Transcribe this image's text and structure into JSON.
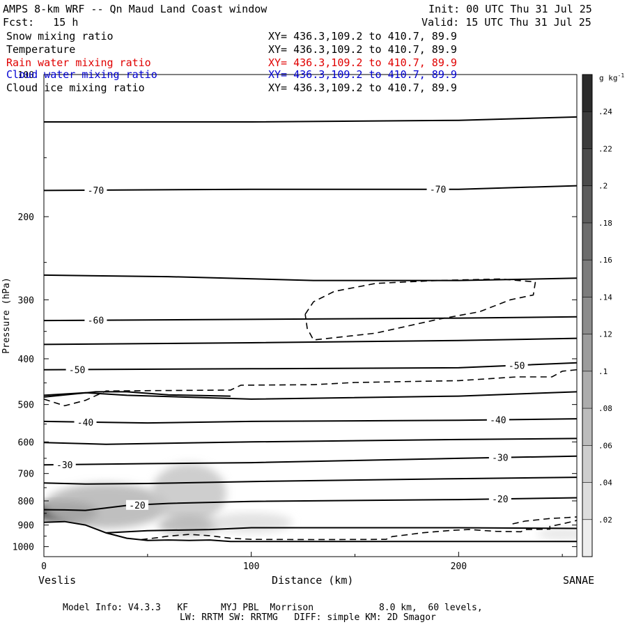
{
  "header": {
    "title": "AMPS 8-km WRF -- Qn Maud Land Coast window",
    "init": "Init: 00 UTC Thu 31 Jul 25",
    "fcst": "Fcst:   15 h",
    "valid": "Valid: 15 UTC Thu 31 Jul 25"
  },
  "legend": [
    {
      "name": "Snow mixing ratio",
      "xy": "XY= 436.3,109.2 to 410.7, 89.9",
      "color": "#000000"
    },
    {
      "name": "Temperature",
      "xy": "XY= 436.3,109.2 to 410.7, 89.9",
      "color": "#000000"
    },
    {
      "name": "Rain water mixing ratio",
      "xy": "XY= 436.3,109.2 to 410.7, 89.9",
      "color": "#e00000"
    },
    {
      "name": "Cloud water mixing ratio",
      "xy": "XY= 436.3,109.2 to 410.7, 89.9",
      "color": "#0000d0"
    },
    {
      "name": "Cloud ice mixing ratio",
      "xy": "XY= 436.3,109.2 to 410.7, 89.9",
      "color": "#000000"
    }
  ],
  "footer": {
    "line1": "Model Info: V4.3.3   KF      MYJ PBL  Morrison            8.0 km,  60 levels,",
    "line2": "LW: RRTM SW: RRTMG   DIFF: simple KM: 2D Smagor"
  },
  "chart_data": {
    "type": "heatmap",
    "title": "AMPS 8-km WRF -- Qn Maud Land Coast window",
    "xlabel": "Distance (km)",
    "ylabel": "Pressure (hPa)",
    "xlim": [
      0,
      257
    ],
    "ylim": [
      1050,
      100
    ],
    "y_scale": "log",
    "x_ticks": [
      0,
      100,
      200
    ],
    "y_ticks": [
      100,
      200,
      300,
      400,
      500,
      600,
      700,
      800,
      900,
      1000
    ],
    "x_end_labels": {
      "left": "Veslis",
      "right": "SANAE"
    },
    "colorbar": {
      "unit": "g kg-1",
      "ticks": [
        ".02",
        ".04",
        ".06",
        ".08",
        ".1",
        ".12",
        ".14",
        ".16",
        ".18",
        ".2",
        ".22",
        ".24"
      ],
      "values": [
        0.02,
        0.04,
        0.06,
        0.08,
        0.1,
        0.12,
        0.14,
        0.16,
        0.18,
        0.2,
        0.22,
        0.24
      ],
      "max": 0.26
    },
    "snow_blobs": [
      {
        "x": 10,
        "p": 845,
        "sx": 16,
        "sp": 45,
        "value": 0.24
      },
      {
        "x": 30,
        "p": 820,
        "sx": 30,
        "sp": 95,
        "value": 0.08
      },
      {
        "x": 70,
        "p": 770,
        "sx": 18,
        "sp": 120,
        "value": 0.06
      },
      {
        "x": 70,
        "p": 900,
        "sx": 15,
        "sp": 45,
        "value": 0.08
      },
      {
        "x": 100,
        "p": 890,
        "sx": 20,
        "sp": 45,
        "value": 0.03
      },
      {
        "x": 250,
        "p": 940,
        "sx": 12,
        "sp": 30,
        "value": 0.02
      }
    ],
    "terrain": [
      {
        "x": 0,
        "p": 888
      },
      {
        "x": 10,
        "p": 885
      },
      {
        "x": 20,
        "p": 900
      },
      {
        "x": 30,
        "p": 935
      },
      {
        "x": 40,
        "p": 960
      },
      {
        "x": 50,
        "p": 970
      },
      {
        "x": 60,
        "p": 968
      },
      {
        "x": 70,
        "p": 970
      },
      {
        "x": 80,
        "p": 968
      },
      {
        "x": 90,
        "p": 975
      },
      {
        "x": 257,
        "p": 975
      }
    ],
    "isotherms": [
      {
        "label": "",
        "points": [
          [
            0,
            126
          ],
          [
            100,
            126
          ],
          [
            200,
            125
          ],
          [
            257,
            123
          ]
        ]
      },
      {
        "label": "-70",
        "points": [
          [
            0,
            176
          ],
          [
            100,
            175
          ],
          [
            200,
            175
          ],
          [
            257,
            172
          ]
        ],
        "label_at": [
          25,
          190
        ]
      },
      {
        "label": "",
        "points": [
          [
            0,
            266
          ],
          [
            60,
            268
          ],
          [
            130,
            273
          ],
          [
            200,
            273
          ],
          [
            257,
            270
          ]
        ]
      },
      {
        "label": "-60",
        "points": [
          [
            0,
            332
          ],
          [
            100,
            330
          ],
          [
            200,
            328
          ],
          [
            257,
            326
          ]
        ],
        "label_at": [
          25
        ]
      },
      {
        "label": "",
        "points": [
          [
            0,
            373
          ],
          [
            100,
            370
          ],
          [
            200,
            366
          ],
          [
            257,
            362
          ]
        ]
      },
      {
        "label": "-50",
        "points": [
          [
            0,
            422
          ],
          [
            100,
            420
          ],
          [
            200,
            418
          ],
          [
            257,
            408
          ]
        ],
        "label_at": [
          16,
          228
        ]
      },
      {
        "label": "",
        "points": [
          [
            0,
            478
          ],
          [
            20,
            472
          ],
          [
            40,
            478
          ],
          [
            100,
            487
          ],
          [
            200,
            480
          ],
          [
            257,
            470
          ]
        ]
      },
      {
        "label": "",
        "points": [
          [
            0,
            482
          ],
          [
            25,
            470
          ],
          [
            40,
            470
          ],
          [
            60,
            477
          ],
          [
            90,
            480
          ]
        ]
      },
      {
        "label": "-40",
        "points": [
          [
            0,
            543
          ],
          [
            50,
            547
          ],
          [
            100,
            543
          ],
          [
            200,
            540
          ],
          [
            257,
            536
          ]
        ],
        "label_at": [
          20,
          219
        ]
      },
      {
        "label": "",
        "points": [
          [
            0,
            602
          ],
          [
            30,
            607
          ],
          [
            100,
            600
          ],
          [
            200,
            593
          ],
          [
            257,
            590
          ]
        ]
      },
      {
        "label": "-30",
        "points": [
          [
            0,
            671
          ],
          [
            50,
            667
          ],
          [
            100,
            664
          ],
          [
            200,
            650
          ],
          [
            257,
            643
          ]
        ],
        "label_at": [
          10,
          220
        ]
      },
      {
        "label": "",
        "points": [
          [
            0,
            733
          ],
          [
            20,
            737
          ],
          [
            50,
            735
          ],
          [
            100,
            728
          ],
          [
            200,
            718
          ],
          [
            257,
            713
          ]
        ]
      },
      {
        "label": "-20",
        "points": [
          [
            0,
            835
          ],
          [
            10,
            836
          ],
          [
            20,
            838
          ],
          [
            30,
            828
          ],
          [
            40,
            818
          ],
          [
            60,
            810
          ],
          [
            100,
            802
          ],
          [
            200,
            795
          ],
          [
            257,
            788
          ]
        ],
        "label_at": [
          45,
          220
        ]
      },
      {
        "label": "",
        "points": [
          [
            30,
            935
          ],
          [
            50,
            925
          ],
          [
            80,
            920
          ],
          [
            100,
            912
          ],
          [
            200,
            912
          ],
          [
            257,
            915
          ]
        ]
      }
    ],
    "cloud_ice_contours": [
      {
        "points": [
          [
            126,
            322
          ],
          [
            130,
            303
          ],
          [
            140,
            288
          ],
          [
            160,
            277
          ],
          [
            190,
            273
          ],
          [
            220,
            271
          ],
          [
            237,
            275
          ],
          [
            236,
            293
          ],
          [
            225,
            300
          ],
          [
            210,
            318
          ],
          [
            190,
            330
          ],
          [
            160,
            353
          ],
          [
            130,
            365
          ],
          [
            127,
            345
          ],
          [
            126,
            322
          ]
        ]
      },
      {
        "points": [
          [
            0,
            487
          ],
          [
            10,
            503
          ],
          [
            20,
            490
          ],
          [
            30,
            468
          ],
          [
            90,
            466
          ],
          [
            95,
            455
          ],
          [
            130,
            454
          ],
          [
            150,
            449
          ],
          [
            200,
            445
          ],
          [
            228,
            437
          ],
          [
            245,
            437
          ],
          [
            250,
            425
          ],
          [
            257,
            422
          ]
        ]
      },
      {
        "points": [
          [
            47,
            966
          ],
          [
            55,
            957
          ],
          [
            60,
            950
          ],
          [
            70,
            942
          ],
          [
            80,
            948
          ],
          [
            90,
            960
          ],
          [
            100,
            965
          ],
          [
            130,
            966
          ],
          [
            165,
            965
          ],
          [
            168,
            952
          ],
          [
            175,
            944
          ],
          [
            182,
            935
          ],
          [
            196,
            924
          ],
          [
            205,
            920
          ],
          [
            218,
            928
          ],
          [
            230,
            930
          ],
          [
            232,
            920
          ],
          [
            244,
            918
          ],
          [
            244,
            906
          ],
          [
            250,
            895
          ],
          [
            257,
            880
          ]
        ]
      },
      {
        "points": [
          [
            226,
            895
          ],
          [
            232,
            883
          ],
          [
            244,
            872
          ],
          [
            252,
            868
          ],
          [
            257,
            865
          ]
        ]
      }
    ]
  }
}
